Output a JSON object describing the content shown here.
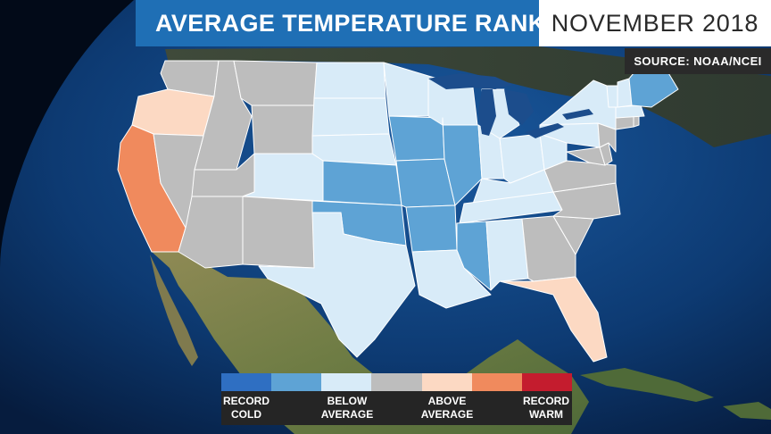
{
  "header": {
    "title": "AVERAGE TEMPERATURE RANKS",
    "date": "NOVEMBER 2018",
    "source": "SOURCE: NOAA/NCEI"
  },
  "colors": {
    "record_cold": "#2f6fc2",
    "much_below": "#5ea3d5",
    "below": "#d8ebf8",
    "near": "#bdbdbd",
    "above": "#fcd9c3",
    "much_above": "#f08a5d",
    "record_warm": "#c41c2e",
    "ocean": "#0f3f7a",
    "land": "#8a7a4c"
  },
  "legend": {
    "swatches": [
      "record_cold",
      "much_below",
      "below",
      "near",
      "above",
      "much_above",
      "record_warm"
    ],
    "labels": [
      {
        "line1": "RECORD",
        "line2": "COLD"
      },
      {
        "line1": "BELOW",
        "line2": "AVERAGE"
      },
      {
        "line1": "ABOVE",
        "line2": "AVERAGE"
      },
      {
        "line1": "RECORD",
        "line2": "WARM"
      }
    ]
  },
  "states": [
    {
      "name": "Washington",
      "rank": "near"
    },
    {
      "name": "Oregon",
      "rank": "above"
    },
    {
      "name": "California",
      "rank": "much_above"
    },
    {
      "name": "Idaho",
      "rank": "near"
    },
    {
      "name": "Nevada",
      "rank": "near"
    },
    {
      "name": "Montana",
      "rank": "near"
    },
    {
      "name": "Wyoming",
      "rank": "near"
    },
    {
      "name": "Utah",
      "rank": "near"
    },
    {
      "name": "Arizona",
      "rank": "near"
    },
    {
      "name": "Colorado",
      "rank": "below"
    },
    {
      "name": "New Mexico",
      "rank": "near"
    },
    {
      "name": "North Dakota",
      "rank": "below"
    },
    {
      "name": "South Dakota",
      "rank": "below"
    },
    {
      "name": "Nebraska",
      "rank": "below"
    },
    {
      "name": "Kansas",
      "rank": "much_below"
    },
    {
      "name": "Oklahoma",
      "rank": "much_below"
    },
    {
      "name": "Texas",
      "rank": "below"
    },
    {
      "name": "Minnesota",
      "rank": "below"
    },
    {
      "name": "Iowa",
      "rank": "much_below"
    },
    {
      "name": "Missouri",
      "rank": "much_below"
    },
    {
      "name": "Arkansas",
      "rank": "much_below"
    },
    {
      "name": "Louisiana",
      "rank": "below"
    },
    {
      "name": "Wisconsin",
      "rank": "below"
    },
    {
      "name": "Illinois",
      "rank": "much_below"
    },
    {
      "name": "Michigan",
      "rank": "below"
    },
    {
      "name": "Indiana",
      "rank": "below"
    },
    {
      "name": "Ohio",
      "rank": "below"
    },
    {
      "name": "Kentucky",
      "rank": "below"
    },
    {
      "name": "Tennessee",
      "rank": "below"
    },
    {
      "name": "Mississippi",
      "rank": "much_below"
    },
    {
      "name": "Alabama",
      "rank": "below"
    },
    {
      "name": "Georgia",
      "rank": "near"
    },
    {
      "name": "Florida",
      "rank": "above"
    },
    {
      "name": "South Carolina",
      "rank": "near"
    },
    {
      "name": "North Carolina",
      "rank": "near"
    },
    {
      "name": "Virginia",
      "rank": "near"
    },
    {
      "name": "West Virginia",
      "rank": "below"
    },
    {
      "name": "Pennsylvania",
      "rank": "below"
    },
    {
      "name": "New York",
      "rank": "below"
    },
    {
      "name": "Maryland",
      "rank": "near"
    },
    {
      "name": "Delaware",
      "rank": "near"
    },
    {
      "name": "New Jersey",
      "rank": "near"
    },
    {
      "name": "Connecticut",
      "rank": "near"
    },
    {
      "name": "Rhode Island",
      "rank": "near"
    },
    {
      "name": "Massachusetts",
      "rank": "below"
    },
    {
      "name": "Vermont",
      "rank": "below"
    },
    {
      "name": "New Hampshire",
      "rank": "below"
    },
    {
      "name": "Maine",
      "rank": "much_below"
    }
  ]
}
